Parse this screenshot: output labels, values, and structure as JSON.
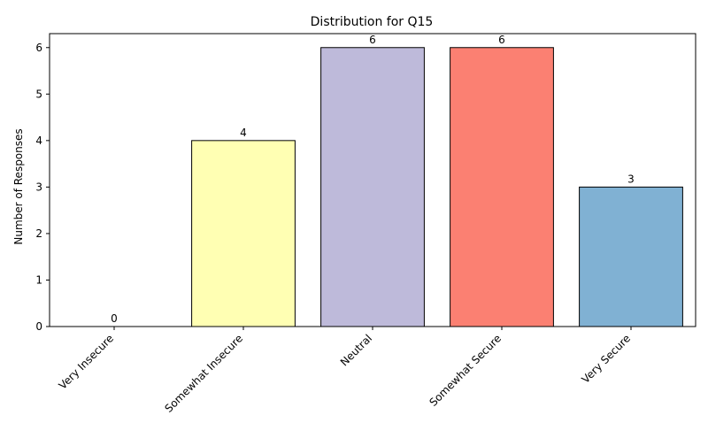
{
  "chart_data": {
    "type": "bar",
    "title": "Distribution for Q15",
    "xlabel": "",
    "ylabel": "Number of Responses",
    "categories": [
      "Very Insecure",
      "Somewhat Insecure",
      "Neutral",
      "Somewhat Secure",
      "Very Secure"
    ],
    "values": [
      0,
      4,
      6,
      6,
      3
    ],
    "data_labels": [
      "0",
      "4",
      "6",
      "6",
      "3"
    ],
    "colors": [
      "#8dd3c7",
      "#ffffb3",
      "#bebada",
      "#fb8072",
      "#80b1d3"
    ],
    "ylim": [
      0,
      6.3
    ],
    "yticks": [
      0,
      1,
      2,
      3,
      4,
      5,
      6
    ],
    "ytick_labels": [
      "0",
      "1",
      "2",
      "3",
      "4",
      "5",
      "6"
    ],
    "grid": false,
    "legend": "none"
  }
}
